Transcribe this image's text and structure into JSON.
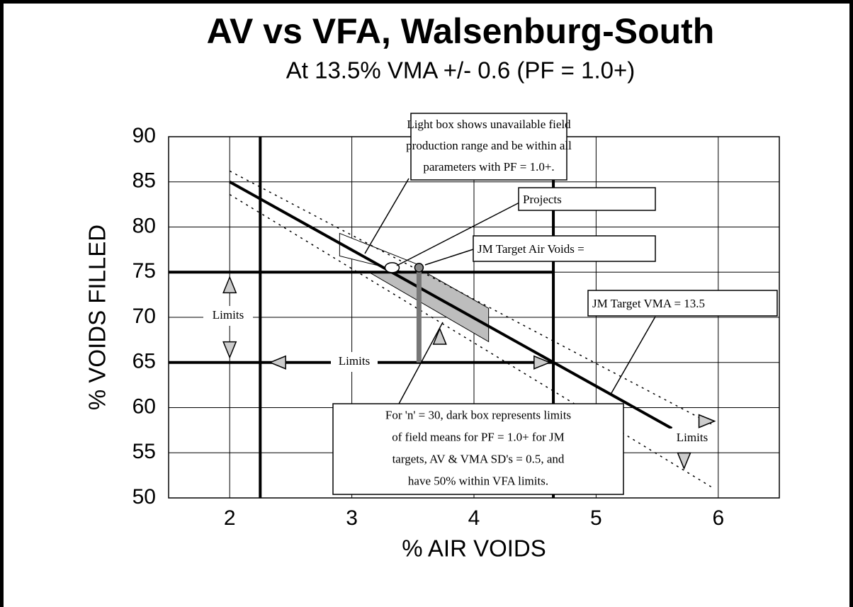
{
  "chart_data": {
    "type": "line",
    "title": "AV vs VFA, Walsenburg-South",
    "subtitle": "At 13.5% VMA +/- 0.6 (PF = 1.0+)",
    "x_label": "% AIR VOIDS",
    "y_label": "% VOIDS FILLED",
    "xlim": [
      1.5,
      6.5
    ],
    "xticks": [
      2,
      3,
      4,
      5,
      6
    ],
    "ylim": [
      50,
      90
    ],
    "yticks": [
      50,
      55,
      60,
      65,
      70,
      75,
      80,
      85,
      90
    ],
    "grid": true,
    "lines": [
      {
        "x": [
          2,
          5.62
        ],
        "y": [
          85,
          57.7
        ],
        "style": "solid"
      },
      {
        "x": [
          2,
          5.97
        ],
        "y": [
          86.2,
          58
        ],
        "style": "dotted"
      },
      {
        "x": [
          2,
          5.97
        ],
        "y": [
          83.6,
          51
        ],
        "style": "dotted"
      }
    ],
    "hlines": [
      {
        "y": 75,
        "x": [
          1.5,
          4.65
        ]
      },
      {
        "y": 65,
        "x": [
          1.5,
          4.65
        ]
      }
    ],
    "vlines": [
      {
        "x": 2.25,
        "y": [
          50,
          90
        ]
      },
      {
        "x": 4.65,
        "y": [
          50,
          87
        ]
      },
      {
        "x": 3.55,
        "y": [
          65,
          76
        ],
        "color": "#777"
      }
    ],
    "regions": [
      {
        "x": [
          2.9,
          3.55,
          3.55,
          2.9
        ],
        "y": [
          79.3,
          75.8,
          74.6,
          76.8
        ],
        "color": "#ffffff"
      },
      {
        "x": [
          3.14,
          3.6,
          4.12,
          4.12
        ],
        "y": [
          75,
          75,
          71,
          67.3
        ],
        "color": "#bdbdbd"
      }
    ],
    "points": [
      {
        "x": 3.33,
        "y": 75.5,
        "color": "#ffffff"
      },
      {
        "x": 3.55,
        "y": 75.5,
        "color": "#888888"
      }
    ],
    "arrows": [
      {
        "x": 2,
        "y": 73.5,
        "dir": "up"
      },
      {
        "x": 2,
        "y": 66.5,
        "dir": "down"
      },
      {
        "x": 2.4,
        "y": 65,
        "dir": "left"
      },
      {
        "x": 4.55,
        "y": 65,
        "dir": "right"
      },
      {
        "x": 3.72,
        "y": 67.8,
        "dir": "up"
      },
      {
        "x": 5.9,
        "y": 58.5,
        "dir": "right"
      },
      {
        "x": 5.72,
        "y": 54.2,
        "dir": "down"
      }
    ],
    "limit_labels": [
      "Limits",
      "Limits",
      "Limits"
    ],
    "annotations": [
      {
        "lines": [
          "Light box shows unavailable field",
          "production range and be within all",
          "parameters with PF = 1.0+."
        ]
      },
      {
        "lines": [
          "Projects"
        ]
      },
      {
        "lines": [
          "JM Target Air Voids ="
        ]
      },
      {
        "lines": [
          "JM Target VMA = 13.5"
        ]
      },
      {
        "lines": [
          "For 'n' = 30, dark box represents limits",
          "of field means for PF = 1.0+ for JM",
          "targets, AV & VMA SD's = 0.5, and",
          "have 50%  within VFA limits."
        ]
      }
    ]
  }
}
